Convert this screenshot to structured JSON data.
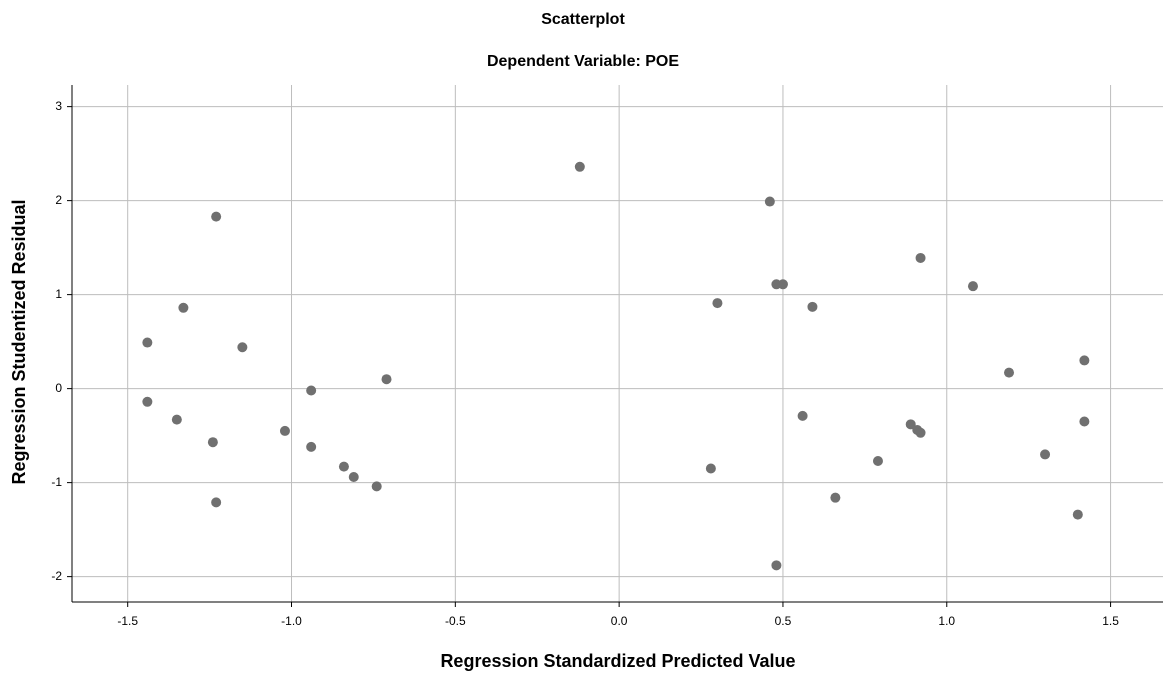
{
  "chart_data": {
    "type": "scatter",
    "title": "Scatterplot",
    "subtitle": "Dependent Variable: POE",
    "x_label": "Regression Standardized Predicted Value",
    "y_label": "Regression Studentized Residual",
    "color": "#707070",
    "grid": true,
    "x": [
      -0.12,
      0.46,
      -1.23,
      0.92,
      0.48,
      0.5,
      1.08,
      0.3,
      -1.33,
      0.59,
      -1.44,
      -1.15,
      1.42,
      1.19,
      -0.71,
      -0.94,
      -1.44,
      -1.35,
      0.56,
      1.42,
      0.89,
      0.91,
      0.92,
      -1.02,
      -1.24,
      -0.94,
      1.3,
      0.79,
      0.28,
      -0.84,
      -0.81,
      -0.74,
      0.66,
      -1.23,
      1.4,
      0.48
    ],
    "values": [
      2.36,
      1.99,
      1.83,
      1.39,
      1.11,
      1.11,
      1.09,
      0.91,
      0.86,
      0.87,
      0.49,
      0.44,
      0.3,
      0.17,
      0.1,
      -0.02,
      -0.14,
      -0.33,
      -0.29,
      -0.35,
      -0.38,
      -0.44,
      -0.47,
      -0.45,
      -0.57,
      -0.62,
      -0.7,
      -0.77,
      -0.85,
      -0.83,
      -0.94,
      -1.04,
      -1.16,
      -1.21,
      -1.34,
      -1.88
    ],
    "xlim": [
      -1.67,
      1.66
    ],
    "ylim": [
      -2.27,
      3.23
    ],
    "xticks": [
      -1.5,
      {
        "value": -1.0,
        "label": "-1.0"
      },
      -0.5,
      {
        "value": 0,
        "label": "0.0"
      },
      0.5,
      {
        "value": 1.0,
        "label": "1.0"
      },
      1.5
    ],
    "yticks": [
      -2,
      -1,
      0,
      1,
      2,
      3
    ]
  }
}
